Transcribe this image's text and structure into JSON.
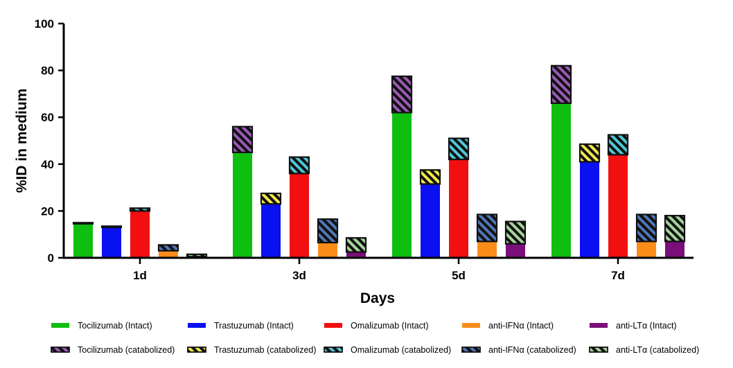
{
  "chart_data": {
    "type": "bar",
    "stacked": true,
    "xlabel": "Days",
    "ylabel": "%ID in medium",
    "ylim": [
      0,
      100
    ],
    "yticks": [
      0,
      20,
      40,
      60,
      80,
      100
    ],
    "categories": [
      "1d",
      "3d",
      "5d",
      "7d"
    ],
    "antibodies": [
      {
        "name": "Tocilizumab",
        "color": "#0fbf0f",
        "hatch_color": "#9b59b6",
        "intact_label": "Tocilizumab (Intact)",
        "catabolized_label": "Tocilizumab (catabolized)",
        "intact": [
          14.5,
          45,
          62,
          66
        ],
        "catabolized": [
          0.5,
          11,
          15.5,
          16
        ]
      },
      {
        "name": "Trastuzumab",
        "color": "#0a10f0",
        "hatch_color": "#f2e84a",
        "intact_label": "Trastuzumab (Intact)",
        "catabolized_label": "Trastuzumab (catabolized)",
        "intact": [
          13,
          23,
          31.5,
          41
        ],
        "catabolized": [
          0.5,
          4.5,
          6,
          7.5
        ]
      },
      {
        "name": "Omalizumab",
        "color": "#f20f0f",
        "hatch_color": "#4fc7d6",
        "intact_label": "Omalizumab (Intact)",
        "catabolized_label": "Omalizumab (catabolized)",
        "intact": [
          20,
          36,
          42,
          44
        ],
        "catabolized": [
          1.2,
          7,
          9,
          8.5
        ]
      },
      {
        "name": "anti-IFNα",
        "color": "#fb8c1a",
        "hatch_color": "#4f77b8",
        "intact_label": "anti-IFNα (Intact)",
        "catabolized_label": "anti-IFNα (catabolized)",
        "intact": [
          3,
          6.5,
          7,
          7
        ],
        "catabolized": [
          2.5,
          10,
          11.5,
          11.5
        ]
      },
      {
        "name": "anti-LTα",
        "color": "#7a0f7a",
        "hatch_color": "#a4d49a",
        "intact_label": "anti-LTα (Intact)",
        "catabolized_label": "anti-LTα (catabolized)",
        "intact": [
          0.5,
          2.5,
          6,
          7
        ],
        "catabolized": [
          1,
          6,
          9.5,
          11
        ]
      }
    ],
    "legend_placement": "bottom",
    "grid": false
  }
}
